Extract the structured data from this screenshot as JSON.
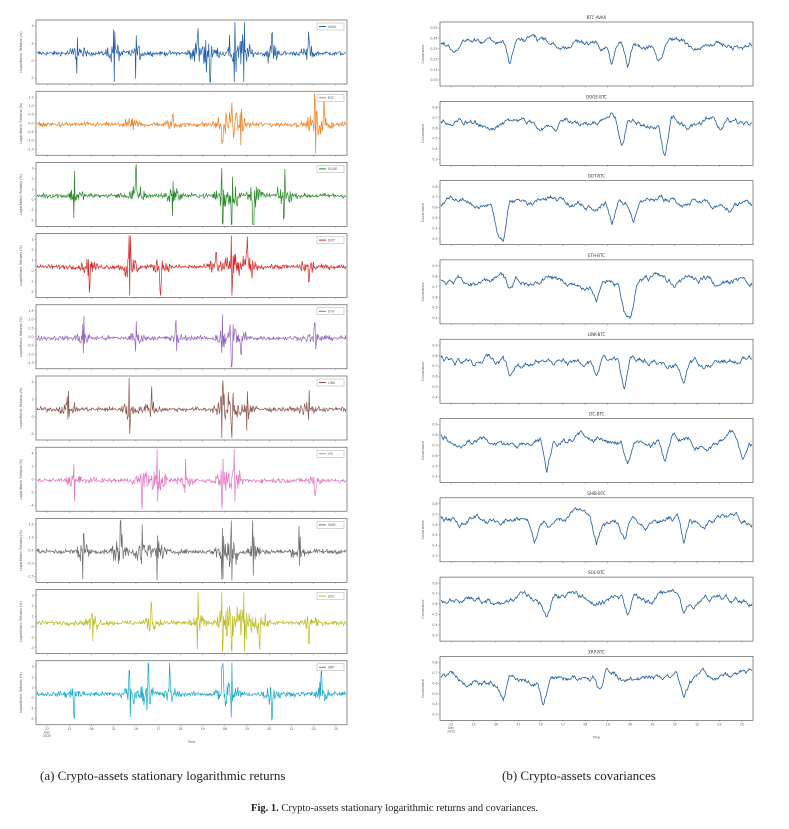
{
  "figure_caption": {
    "label": "Fig. 1.",
    "text": "Crypto-assets stationary logarithmic returns and covariances."
  },
  "subcaption_left": "(a) Crypto-assets stationary logarithmic returns",
  "subcaption_right": "(b) Crypto-assets covariances",
  "chart_data": [
    {
      "type": "line",
      "panel": "left",
      "ylabel": "Logarithmic Returns (%)",
      "xlabel": "Time",
      "x_ticks": [
        "22\nDec\n2020",
        "13",
        "06",
        "31",
        "16",
        "17",
        "28",
        "19",
        "08",
        "29",
        "20",
        "12",
        "03",
        "25"
      ],
      "series": [
        {
          "name": "AVAX",
          "color": "#1f5fa8",
          "ylim": [
            -2,
            4
          ],
          "yticks": [
            "4",
            "2",
            "0",
            "-2"
          ],
          "spikes": [
            [
              0.13,
              1.0
            ],
            [
              0.25,
              1.2
            ],
            [
              0.32,
              0.9
            ],
            [
              0.52,
              1.3
            ],
            [
              0.56,
              1.6
            ],
            [
              0.64,
              2.5
            ],
            [
              0.67,
              1.4
            ],
            [
              0.76,
              1.1
            ],
            [
              0.88,
              1.0
            ]
          ]
        },
        {
          "name": "BTC",
          "color": "#f07f1e",
          "ylim": [
            -1.5,
            1.5
          ],
          "yticks": [
            "1.5",
            "1.0",
            "0.5",
            "0.0",
            "-0.5",
            "-1.0",
            "-1.5"
          ],
          "spikes": [
            [
              0.31,
              0.6
            ],
            [
              0.44,
              0.5
            ],
            [
              0.6,
              1.0
            ],
            [
              0.63,
              1.1
            ],
            [
              0.66,
              0.8
            ],
            [
              0.9,
              1.3
            ],
            [
              0.93,
              0.9
            ]
          ]
        },
        {
          "name": "DOGE",
          "color": "#2a8a2a",
          "ylim": [
            -2,
            3
          ],
          "yticks": [
            "3",
            "2",
            "1",
            "0",
            "-1",
            "-2"
          ],
          "spikes": [
            [
              0.12,
              0.9
            ],
            [
              0.32,
              1.4
            ],
            [
              0.44,
              1.1
            ],
            [
              0.6,
              1.6
            ],
            [
              0.63,
              1.9
            ],
            [
              0.7,
              2.0
            ],
            [
              0.8,
              1.2
            ]
          ]
        },
        {
          "name": "DOT",
          "color": "#d62728",
          "ylim": [
            -2,
            3
          ],
          "yticks": [
            "3",
            "2",
            "1",
            "0",
            "-1",
            "-2"
          ],
          "spikes": [
            [
              0.17,
              0.9
            ],
            [
              0.3,
              2.2
            ],
            [
              0.4,
              1.0
            ],
            [
              0.58,
              1.1
            ],
            [
              0.63,
              2.0
            ],
            [
              0.68,
              1.5
            ],
            [
              0.88,
              1.0
            ]
          ]
        },
        {
          "name": "ETH",
          "color": "#9467bd",
          "ylim": [
            -1.5,
            1.5
          ],
          "yticks": [
            "1.5",
            "1.0",
            "0.5",
            "0.0",
            "-0.5",
            "-1.0",
            "-1.5"
          ],
          "spikes": [
            [
              0.15,
              0.8
            ],
            [
              0.32,
              0.7
            ],
            [
              0.45,
              0.6
            ],
            [
              0.6,
              1.1
            ],
            [
              0.63,
              1.4
            ],
            [
              0.66,
              1.0
            ],
            [
              0.9,
              0.7
            ]
          ]
        },
        {
          "name": "LINK",
          "color": "#8c564b",
          "ylim": [
            -2,
            4
          ],
          "yticks": [
            "4",
            "2",
            "0",
            "-2"
          ],
          "spikes": [
            [
              0.1,
              0.8
            ],
            [
              0.3,
              1.2
            ],
            [
              0.37,
              0.9
            ],
            [
              0.6,
              1.3
            ],
            [
              0.63,
              1.8
            ],
            [
              0.68,
              1.2
            ],
            [
              0.88,
              0.8
            ]
          ]
        },
        {
          "name": "LTC",
          "color": "#e377c2",
          "ylim": [
            -4,
            4
          ],
          "yticks": [
            "4",
            "2",
            "0",
            "-2",
            "-4"
          ],
          "spikes": [
            [
              0.12,
              0.7
            ],
            [
              0.34,
              1.2
            ],
            [
              0.39,
              1.8
            ],
            [
              0.48,
              0.9
            ],
            [
              0.6,
              1.0
            ],
            [
              0.64,
              1.2
            ],
            [
              0.9,
              0.8
            ]
          ]
        },
        {
          "name": "SHIB",
          "color": "#6e6e6e",
          "ylim": [
            -1.5,
            2.5
          ],
          "yticks": [
            "2.5",
            "1.5",
            "0.5",
            "-0.5",
            "-1.5"
          ],
          "spikes": [
            [
              0.15,
              1.1
            ],
            [
              0.27,
              1.9
            ],
            [
              0.34,
              1.5
            ],
            [
              0.39,
              1.2
            ],
            [
              0.6,
              1.4
            ],
            [
              0.63,
              2.2
            ],
            [
              0.7,
              1.2
            ],
            [
              0.85,
              1.0
            ]
          ]
        },
        {
          "name": "SOL",
          "color": "#bcbd22",
          "ylim": [
            -2,
            3
          ],
          "yticks": [
            "3",
            "2",
            "1",
            "0",
            "-1",
            "-2"
          ],
          "spikes": [
            [
              0.18,
              0.9
            ],
            [
              0.37,
              1.0
            ],
            [
              0.52,
              1.3
            ],
            [
              0.6,
              1.6
            ],
            [
              0.63,
              1.9
            ],
            [
              0.67,
              1.6
            ],
            [
              0.72,
              1.2
            ],
            [
              0.88,
              1.0
            ]
          ]
        },
        {
          "name": "XRP",
          "color": "#17a9c9",
          "ylim": [
            -2,
            3
          ],
          "yticks": [
            "3",
            "2",
            "1",
            "0",
            "-1",
            "-2"
          ],
          "spikes": [
            [
              0.12,
              0.9
            ],
            [
              0.3,
              1.6
            ],
            [
              0.36,
              1.5
            ],
            [
              0.43,
              1.1
            ],
            [
              0.6,
              1.3
            ],
            [
              0.63,
              1.8
            ],
            [
              0.76,
              1.2
            ],
            [
              0.92,
              1.0
            ]
          ]
        }
      ]
    },
    {
      "type": "line",
      "panel": "right",
      "ylabel": "Covariance",
      "xlabel": "Time",
      "x_ticks": [
        "22\nDec\n2020",
        "13",
        "06",
        "31",
        "16",
        "17",
        "28",
        "19",
        "08",
        "29",
        "20",
        "12",
        "03",
        "25"
      ],
      "series": [
        {
          "title": "BTC-AVAX",
          "color": "#1f5f9e",
          "yticks": [
            "0.55",
            "0.45",
            "0.35",
            "0.25",
            "0.15",
            "0.05"
          ],
          "dips": [
            [
              0.22,
              0.45
            ],
            [
              0.55,
              0.35
            ],
            [
              0.6,
              0.55
            ],
            [
              0.7,
              0.3
            ]
          ]
        },
        {
          "title": "DOGE-BTC",
          "color": "#1f5f9e",
          "yticks": [
            "0.8",
            "0.7",
            "0.6",
            "0.5",
            "0.4",
            "0.3"
          ],
          "dips": [
            [
              0.37,
              0.3
            ],
            [
              0.58,
              0.55
            ],
            [
              0.72,
              0.7
            ],
            [
              0.9,
              0.2
            ]
          ]
        },
        {
          "title": "DOT-BTC",
          "color": "#1f5f9e",
          "yticks": [
            "0.8",
            "0.7",
            "0.6",
            "0.5",
            "0.4",
            "0.3"
          ],
          "dips": [
            [
              0.18,
              0.7
            ],
            [
              0.2,
              0.8
            ],
            [
              0.55,
              0.45
            ],
            [
              0.62,
              0.3
            ]
          ]
        },
        {
          "title": "ETH-BTC",
          "color": "#1f5f9e",
          "yticks": [
            "0.9",
            "0.8",
            "0.7",
            "0.6",
            "0.5",
            "0.4"
          ],
          "dips": [
            [
              0.22,
              0.25
            ],
            [
              0.5,
              0.35
            ],
            [
              0.59,
              0.5
            ],
            [
              0.61,
              0.7
            ]
          ]
        },
        {
          "title": "LINK-BTC",
          "color": "#1f5f9e",
          "yticks": [
            "0.9",
            "0.8",
            "0.7",
            "0.6",
            "0.5",
            "0.4"
          ],
          "dips": [
            [
              0.22,
              0.3
            ],
            [
              0.5,
              0.35
            ],
            [
              0.59,
              0.6
            ],
            [
              0.78,
              0.4
            ]
          ]
        },
        {
          "title": "LTC-BTC",
          "color": "#1f5f9e",
          "yticks": [
            "0.9",
            "0.8",
            "0.7",
            "0.6",
            "0.5",
            "0.4"
          ],
          "dips": [
            [
              0.34,
              0.6
            ],
            [
              0.6,
              0.45
            ],
            [
              0.72,
              0.4
            ],
            [
              0.97,
              0.5
            ]
          ]
        },
        {
          "title": "SHIB-BTC",
          "color": "#1f5f9e",
          "yticks": [
            "0.8",
            "0.7",
            "0.6",
            "0.5",
            "0.4",
            "0.3"
          ],
          "dips": [
            [
              0.3,
              0.5
            ],
            [
              0.5,
              0.45
            ],
            [
              0.59,
              0.5
            ],
            [
              0.78,
              0.55
            ]
          ]
        },
        {
          "title": "SOL-BTC",
          "color": "#1f5f9e",
          "yticks": [
            "0.8",
            "0.7",
            "0.6",
            "0.5",
            "0.4",
            "0.3"
          ],
          "dips": [
            [
              0.34,
              0.35
            ],
            [
              0.6,
              0.5
            ],
            [
              0.78,
              0.3
            ]
          ]
        },
        {
          "title": "XRP-BTC",
          "color": "#1f5f9e",
          "yticks": [
            "0.8",
            "0.7",
            "0.6",
            "0.5",
            "0.4",
            "0.3"
          ],
          "dips": [
            [
              0.2,
              0.35
            ],
            [
              0.33,
              0.5
            ],
            [
              0.51,
              0.4
            ],
            [
              0.78,
              0.35
            ]
          ]
        }
      ]
    }
  ]
}
